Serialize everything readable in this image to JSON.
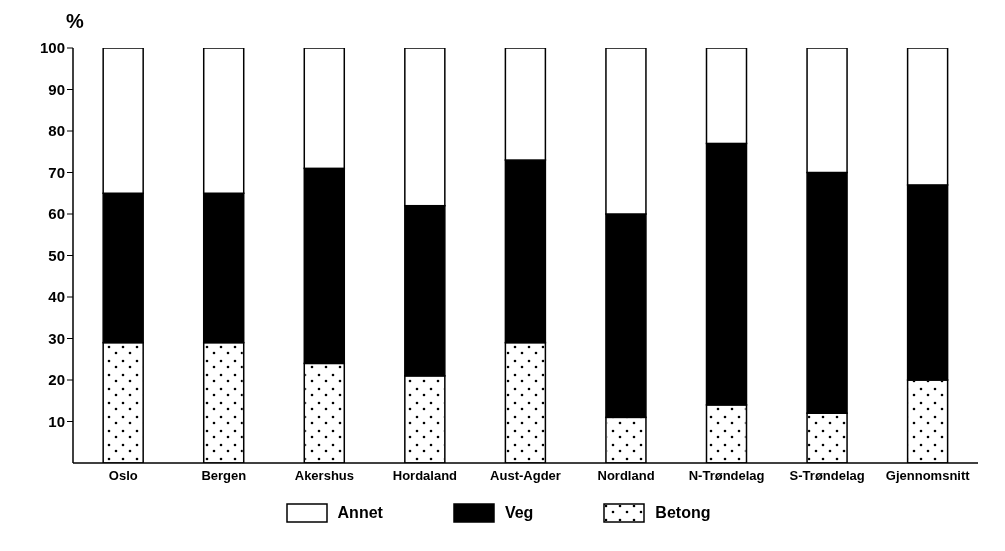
{
  "chart_data": {
    "type": "bar",
    "stacked": true,
    "ylabel": "%",
    "categories": [
      "Oslo",
      "Bergen",
      "Akershus",
      "Hordaland",
      "Aust-Agder",
      "Nordland",
      "N-Trøndelag",
      "S-Trøndelag",
      "Gjennomsnitt"
    ],
    "series": [
      {
        "name": "Betong",
        "color": "#ffffff",
        "values": [
          29,
          29,
          24,
          21,
          29,
          11,
          14,
          12,
          20
        ]
      },
      {
        "name": "Veg",
        "color": "#000000",
        "values": [
          36,
          36,
          47,
          41,
          44,
          49,
          63,
          58,
          47
        ]
      },
      {
        "name": "Annet",
        "color": "#ffffff",
        "values": [
          35,
          35,
          29,
          38,
          27,
          40,
          23,
          30,
          33
        ]
      }
    ],
    "ylim": [
      0,
      100
    ],
    "yticks": [
      10,
      20,
      30,
      40,
      50,
      60,
      70,
      80,
      90,
      100
    ],
    "grid": false,
    "legend": "bottom"
  }
}
